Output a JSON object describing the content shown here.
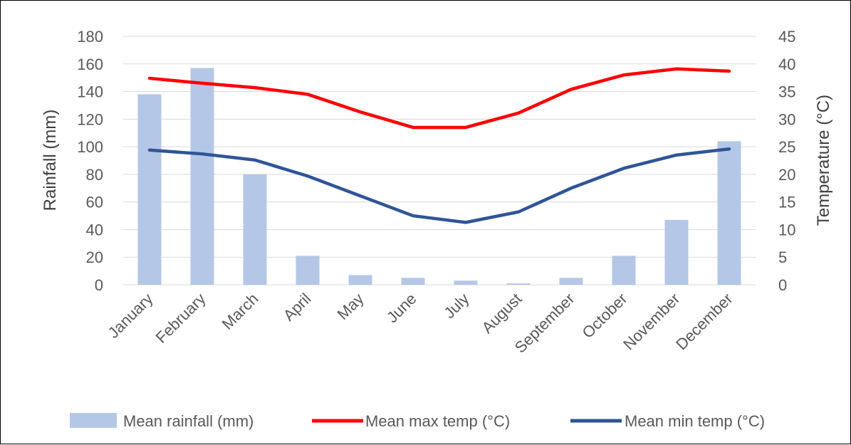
{
  "chart_data": {
    "type": "bar",
    "categories": [
      "January",
      "February",
      "March",
      "April",
      "May",
      "June",
      "July",
      "August",
      "September",
      "October",
      "November",
      "December"
    ],
    "series": [
      {
        "name": "Mean rainfall (mm)",
        "type": "bar",
        "axis": "left",
        "color": "#b4c7e7",
        "values": [
          138,
          157,
          80,
          21,
          7,
          5,
          3,
          1,
          5,
          21,
          47,
          104
        ]
      },
      {
        "name": "Mean max temp (°C)",
        "type": "line",
        "axis": "right",
        "color": "#ff0000",
        "values": [
          37.4,
          36.5,
          35.7,
          34.5,
          31.3,
          28.5,
          28.5,
          31.1,
          35.4,
          38.0,
          39.1,
          38.7
        ]
      },
      {
        "name": "Mean min temp (°C)",
        "type": "line",
        "axis": "right",
        "color": "#2f5597",
        "values": [
          24.4,
          23.7,
          22.6,
          19.7,
          16.1,
          12.5,
          11.3,
          13.2,
          17.5,
          21.1,
          23.5,
          24.6
        ]
      }
    ],
    "ylabel": "Rainfall (mm)",
    "y2label": "Temperature (°C)",
    "ylim": [
      0,
      180
    ],
    "y2lim": [
      0,
      45
    ],
    "yticks": [
      "0",
      "20",
      "40",
      "60",
      "80",
      "100",
      "120",
      "140",
      "160",
      "180"
    ],
    "y2ticks": [
      "0",
      "5",
      "10",
      "15",
      "20",
      "25",
      "30",
      "35",
      "40",
      "45"
    ],
    "grid": true,
    "legend_position": "bottom"
  }
}
